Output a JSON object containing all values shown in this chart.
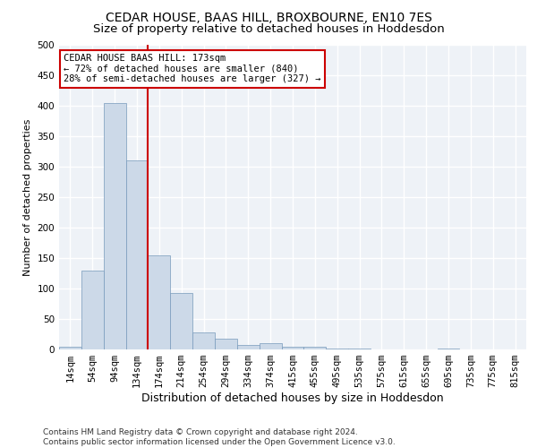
{
  "title": "CEDAR HOUSE, BAAS HILL, BROXBOURNE, EN10 7ES",
  "subtitle": "Size of property relative to detached houses in Hoddesdon",
  "xlabel": "Distribution of detached houses by size in Hoddesdon",
  "ylabel": "Number of detached properties",
  "bar_labels": [
    "14sqm",
    "54sqm",
    "94sqm",
    "134sqm",
    "174sqm",
    "214sqm",
    "254sqm",
    "294sqm",
    "334sqm",
    "374sqm",
    "415sqm",
    "455sqm",
    "495sqm",
    "535sqm",
    "575sqm",
    "615sqm",
    "655sqm",
    "695sqm",
    "735sqm",
    "775sqm",
    "815sqm"
  ],
  "bar_values": [
    5,
    130,
    405,
    310,
    155,
    92,
    28,
    18,
    8,
    10,
    4,
    5,
    2,
    1,
    0,
    0,
    0,
    2,
    0,
    0,
    0
  ],
  "bar_color": "#ccd9e8",
  "bar_edge_color": "#7799bb",
  "vline_color": "#cc0000",
  "annotation_text": "CEDAR HOUSE BAAS HILL: 173sqm\n← 72% of detached houses are smaller (840)\n28% of semi-detached houses are larger (327) →",
  "annotation_box_color": "white",
  "annotation_box_edge_color": "#cc0000",
  "ylim": [
    0,
    500
  ],
  "yticks": [
    0,
    50,
    100,
    150,
    200,
    250,
    300,
    350,
    400,
    450,
    500
  ],
  "background_color": "#eef2f7",
  "grid_color": "white",
  "footer_text": "Contains HM Land Registry data © Crown copyright and database right 2024.\nContains public sector information licensed under the Open Government Licence v3.0.",
  "title_fontsize": 10,
  "subtitle_fontsize": 9.5,
  "xlabel_fontsize": 9,
  "ylabel_fontsize": 8,
  "tick_fontsize": 7.5,
  "annotation_fontsize": 7.5,
  "footer_fontsize": 6.5
}
